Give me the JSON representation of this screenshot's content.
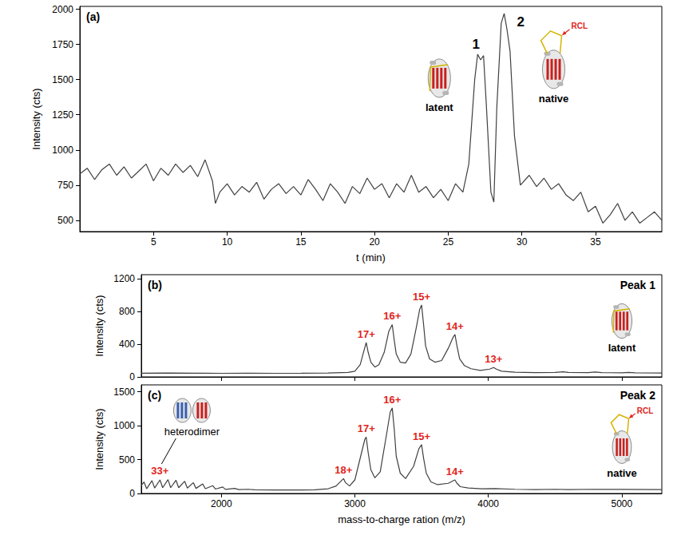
{
  "chart_data": [
    {
      "type": "line",
      "panel": "(a)",
      "x_label": "t (min)",
      "y_label": "Intensity (cts)",
      "xlim": [
        0,
        39.5
      ],
      "xticks": [
        5,
        10,
        15,
        20,
        25,
        30,
        35
      ],
      "ylim": [
        420,
        2020
      ],
      "yticks": [
        500,
        750,
        1000,
        1250,
        1500,
        1750,
        2000
      ],
      "grid": false,
      "color": "#404040",
      "x": [
        0,
        0.5,
        1,
        1.5,
        2,
        2.5,
        3,
        3.5,
        4,
        4.5,
        5,
        5.5,
        6,
        6.5,
        7,
        7.5,
        8,
        8.5,
        9,
        9.2,
        9.5,
        10,
        10.5,
        11,
        11.5,
        12,
        12.5,
        13,
        13.5,
        14,
        14.5,
        15,
        15.5,
        16,
        16.5,
        17,
        17.5,
        18,
        18.5,
        19,
        19.5,
        20,
        20.5,
        21,
        21.5,
        22,
        22.5,
        23,
        23.5,
        24,
        24.5,
        25,
        25.5,
        26,
        26.4,
        26.8,
        27,
        27.2,
        27.4,
        27.6,
        27.9,
        28.1,
        28.3,
        28.6,
        28.8,
        29,
        29.2,
        29.5,
        29.9,
        30.5,
        31,
        31.5,
        32,
        32.5,
        33,
        33.5,
        34,
        34.5,
        35,
        35.5,
        36,
        36.5,
        37,
        37.5,
        38,
        38.5,
        39,
        39.5
      ],
      "values": [
        830,
        870,
        790,
        860,
        900,
        820,
        880,
        800,
        850,
        900,
        780,
        870,
        820,
        900,
        840,
        890,
        810,
        930,
        780,
        620,
        700,
        760,
        680,
        740,
        700,
        770,
        650,
        720,
        760,
        690,
        740,
        680,
        790,
        720,
        640,
        760,
        700,
        620,
        740,
        690,
        800,
        720,
        760,
        660,
        760,
        700,
        820,
        700,
        740,
        660,
        720,
        640,
        760,
        700,
        900,
        1500,
        1680,
        1640,
        1670,
        1300,
        700,
        630,
        1300,
        1900,
        1970,
        1850,
        1700,
        1100,
        750,
        820,
        740,
        800,
        720,
        760,
        680,
        640,
        700,
        560,
        600,
        480,
        540,
        620,
        500,
        560,
        480,
        520,
        560,
        500
      ],
      "peak_labels": [
        {
          "text": "1",
          "x": 27,
          "state": "latent"
        },
        {
          "text": "2",
          "x": 28.8,
          "state": "native",
          "loop": "RCL"
        }
      ]
    },
    {
      "type": "line",
      "panel": "(b)",
      "title": "Peak 1",
      "state": "latent",
      "y_label": "Intensity (cts)",
      "xlim": [
        1400,
        5300
      ],
      "xticks": [
        2000,
        3000,
        4000,
        5000
      ],
      "ylim": [
        0,
        1250
      ],
      "yticks": [
        0,
        400,
        800,
        1200
      ],
      "tick_labels": "y",
      "grid": false,
      "color": "#404040",
      "x": [
        1400,
        1600,
        1800,
        2000,
        2200,
        2400,
        2600,
        2800,
        2950,
        3000,
        3040,
        3070,
        3085,
        3100,
        3120,
        3150,
        3180,
        3220,
        3255,
        3280,
        3295,
        3310,
        3340,
        3380,
        3420,
        3460,
        3485,
        3500,
        3515,
        3530,
        3560,
        3600,
        3650,
        3700,
        3735,
        3750,
        3765,
        3785,
        3820,
        3870,
        3940,
        4010,
        4040,
        4060,
        4100,
        4200,
        4350,
        4500,
        4560,
        4600,
        4750,
        4800,
        4850,
        5000,
        5050,
        5100,
        5300
      ],
      "values": [
        45,
        48,
        46,
        44,
        45,
        44,
        45,
        48,
        55,
        70,
        150,
        330,
        420,
        300,
        180,
        120,
        150,
        300,
        560,
        640,
        450,
        280,
        180,
        170,
        280,
        600,
        820,
        880,
        640,
        380,
        220,
        180,
        200,
        350,
        480,
        520,
        380,
        220,
        140,
        100,
        80,
        95,
        115,
        95,
        70,
        58,
        52,
        55,
        62,
        55,
        52,
        60,
        52,
        50,
        55,
        50,
        48
      ],
      "peak_labels": [
        {
          "text": "17+",
          "x": 3085
        },
        {
          "text": "16+",
          "x": 3280
        },
        {
          "text": "15+",
          "x": 3500
        },
        {
          "text": "14+",
          "x": 3750
        },
        {
          "text": "13+",
          "x": 4040
        }
      ]
    },
    {
      "type": "line",
      "panel": "(c)",
      "title": "Peak 2",
      "state": "native",
      "loop": "RCL",
      "x_label": "mass-to-charge ration (m/z)",
      "y_label": "Intensity (cts)",
      "xlim": [
        1400,
        5300
      ],
      "xticks": [
        2000,
        3000,
        4000,
        5000
      ],
      "ylim": [
        0,
        1600
      ],
      "yticks": [
        0,
        500,
        1000,
        1500
      ],
      "grid": false,
      "color": "#404040",
      "x": [
        1400,
        1420,
        1440,
        1480,
        1500,
        1540,
        1560,
        1600,
        1620,
        1660,
        1680,
        1725,
        1745,
        1790,
        1810,
        1860,
        1880,
        1935,
        1955,
        2010,
        2030,
        2100,
        2130,
        2200,
        2250,
        2400,
        2600,
        2700,
        2800,
        2860,
        2900,
        2915,
        2930,
        2960,
        3000,
        3050,
        3075,
        3085,
        3100,
        3120,
        3150,
        3190,
        3240,
        3265,
        3280,
        3295,
        3310,
        3340,
        3380,
        3440,
        3480,
        3500,
        3515,
        3535,
        3570,
        3620,
        3700,
        3735,
        3750,
        3765,
        3790,
        3850,
        3950,
        4050,
        4200,
        4350,
        4500,
        4600,
        4800,
        5000,
        5300
      ],
      "values": [
        120,
        170,
        70,
        190,
        80,
        200,
        85,
        205,
        85,
        195,
        85,
        180,
        80,
        160,
        75,
        140,
        70,
        115,
        65,
        95,
        60,
        75,
        58,
        62,
        55,
        52,
        52,
        55,
        70,
        110,
        190,
        220,
        160,
        110,
        200,
        600,
        800,
        830,
        600,
        350,
        230,
        320,
        900,
        1200,
        1260,
        950,
        550,
        300,
        220,
        400,
        660,
        720,
        520,
        300,
        170,
        130,
        150,
        185,
        200,
        150,
        100,
        80,
        70,
        72,
        62,
        58,
        62,
        58,
        62,
        60,
        58
      ],
      "peak_labels": [
        {
          "text": "18+",
          "x": 2915
        },
        {
          "text": "17+",
          "x": 3085
        },
        {
          "text": "16+",
          "x": 3280
        },
        {
          "text": "15+",
          "x": 3500
        },
        {
          "text": "14+",
          "x": 3750
        }
      ],
      "group_label": {
        "text": "heterodimer",
        "charge": "33+",
        "x": 1540
      }
    }
  ]
}
